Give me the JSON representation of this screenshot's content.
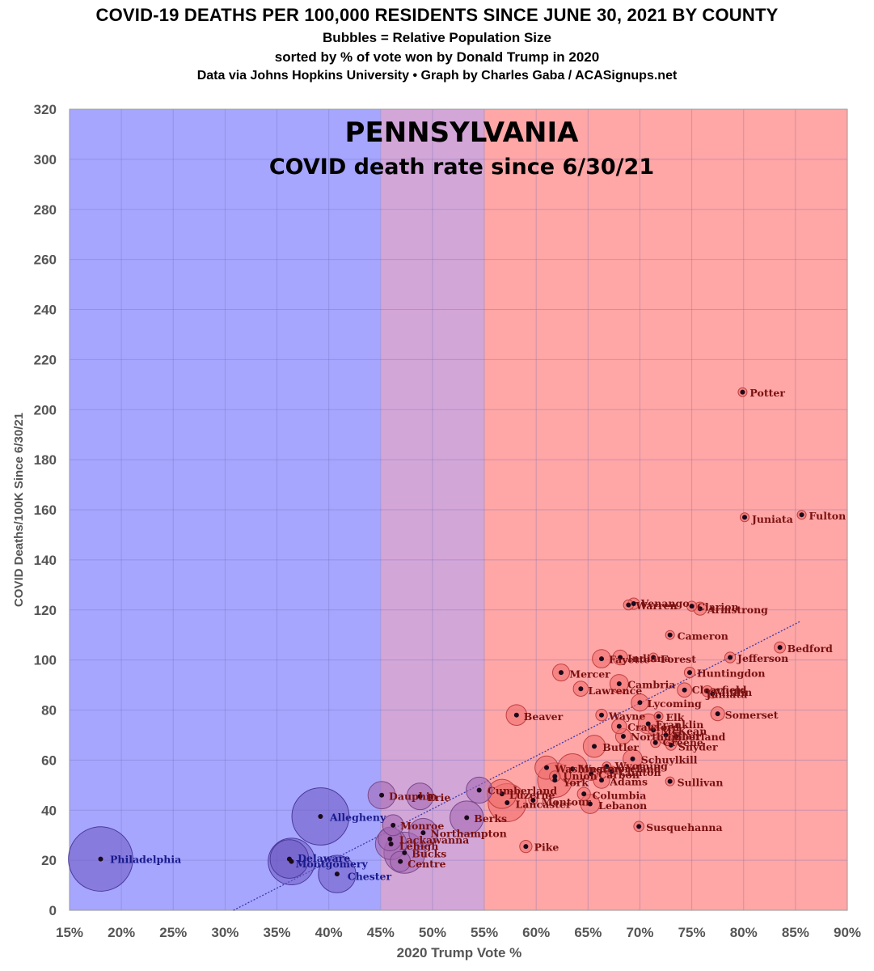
{
  "header": {
    "title": "COVID-19 DEATHS PER 100,000 RESIDENTS SINCE JUNE 30, 2021 BY COUNTY",
    "subtitle1": "Bubbles = Relative Population Size",
    "subtitle2": "sorted by % of vote won by Donald Trump in 2020",
    "subtitle3": "Data via Johns Hopkins University • Graph by Charles Gaba / ACASignups.net"
  },
  "chart_data": {
    "type": "scatter",
    "inset_title": "PENNSYLVANIA",
    "inset_subtitle": "COVID death rate since 6/30/21",
    "xlabel": "2020 Trump Vote %",
    "ylabel": "COVID Deaths/100K Since 6/30/21",
    "xlim": [
      15,
      90
    ],
    "ylim": [
      0,
      320
    ],
    "x_ticks": [
      "15%",
      "20%",
      "25%",
      "30%",
      "35%",
      "40%",
      "45%",
      "50%",
      "55%",
      "60%",
      "65%",
      "70%",
      "75%",
      "80%",
      "85%",
      "90%"
    ],
    "y_ticks": [
      "0",
      "20",
      "40",
      "60",
      "80",
      "100",
      "120",
      "140",
      "160",
      "180",
      "200",
      "220",
      "240",
      "260",
      "280",
      "300",
      "320"
    ],
    "grid": true,
    "bands": [
      {
        "from": 15,
        "to": 45,
        "color": "#a6a6ff"
      },
      {
        "from": 45,
        "to": 55,
        "color": "#d3a6d8"
      },
      {
        "from": 55,
        "to": 90,
        "color": "#ffa6a6"
      }
    ],
    "trendline": {
      "x": [
        30.8,
        85.5
      ],
      "y": [
        0,
        115.5
      ],
      "color": "#3a3aa8"
    },
    "colors": {
      "dem_label": "#1a1a8c",
      "rep_label": "#7a1010",
      "dem_bubble": "#7a6ac8",
      "swing_bubble": "#b07ab8",
      "rep_bubble": "#f07a7a",
      "dot": "#1a0a1a"
    },
    "points": [
      {
        "name": "Philadelphia",
        "x": 18.0,
        "y": 20.5,
        "pop": 1584
      },
      {
        "name": "Delaware",
        "x": 36.2,
        "y": 20.5,
        "pop": 566
      },
      {
        "name": "Montgomery",
        "x": 36.4,
        "y": 19.5,
        "pop": 830
      },
      {
        "name": "Allegheny",
        "x": 39.2,
        "y": 37.5,
        "pop": 1250
      },
      {
        "name": "Chester",
        "x": 40.8,
        "y": 14.5,
        "pop": 534
      },
      {
        "name": "Dauphin",
        "x": 45.1,
        "y": 46.0,
        "pop": 286
      },
      {
        "name": "Lackawanna",
        "x": 45.9,
        "y": 28.5,
        "pop": 215
      },
      {
        "name": "Lehigh",
        "x": 46.0,
        "y": 26.5,
        "pop": 374
      },
      {
        "name": "Monroe",
        "x": 46.2,
        "y": 34.0,
        "pop": 168
      },
      {
        "name": "Bucks",
        "x": 47.3,
        "y": 23.0,
        "pop": 646
      },
      {
        "name": "Centre",
        "x": 46.9,
        "y": 19.5,
        "pop": 158
      },
      {
        "name": "Erie",
        "x": 48.8,
        "y": 45.5,
        "pop": 270
      },
      {
        "name": "Northampton",
        "x": 49.1,
        "y": 31.0,
        "pop": 312
      },
      {
        "name": "Berks",
        "x": 53.3,
        "y": 37.0,
        "pop": 428
      },
      {
        "name": "Cumberland",
        "x": 54.5,
        "y": 48.0,
        "pop": 259
      },
      {
        "name": "Luzerne",
        "x": 56.7,
        "y": 46.5,
        "pop": 325
      },
      {
        "name": "Lancaster",
        "x": 57.2,
        "y": 43.0,
        "pop": 553
      },
      {
        "name": "Montour",
        "x": 59.7,
        "y": 44.0,
        "pop": 18
      },
      {
        "name": "Pike",
        "x": 59.0,
        "y": 25.5,
        "pop": 58
      },
      {
        "name": "Beaver",
        "x": 58.1,
        "y": 78.0,
        "pop": 163
      },
      {
        "name": "Washington",
        "x": 61.0,
        "y": 57.0,
        "pop": 207
      },
      {
        "name": "Union",
        "x": 61.8,
        "y": 53.5,
        "pop": 45
      },
      {
        "name": "York",
        "x": 61.8,
        "y": 52.0,
        "pop": 456
      },
      {
        "name": "Westmoreland",
        "x": 63.5,
        "y": 56.5,
        "pop": 348
      },
      {
        "name": "Carbon",
        "x": 65.3,
        "y": 54.5,
        "pop": 65
      },
      {
        "name": "Mercer",
        "x": 62.4,
        "y": 95.0,
        "pop": 110
      },
      {
        "name": "Lawrence",
        "x": 64.3,
        "y": 88.5,
        "pop": 86
      },
      {
        "name": "Fayette",
        "x": 66.3,
        "y": 100.5,
        "pop": 129
      },
      {
        "name": "Indiana",
        "x": 68.1,
        "y": 101.0,
        "pop": 84
      },
      {
        "name": "Forest",
        "x": 71.3,
        "y": 101.0,
        "pop": 7
      },
      {
        "name": "Cambria",
        "x": 68.0,
        "y": 90.5,
        "pop": 131
      },
      {
        "name": "Wayne",
        "x": 66.3,
        "y": 78.0,
        "pop": 51
      },
      {
        "name": "Butler",
        "x": 65.6,
        "y": 65.5,
        "pop": 187
      },
      {
        "name": "Columbia",
        "x": 64.6,
        "y": 46.5,
        "pop": 65
      },
      {
        "name": "Lebanon",
        "x": 65.2,
        "y": 42.5,
        "pop": 142
      },
      {
        "name": "Adams",
        "x": 66.3,
        "y": 52.0,
        "pop": 103
      },
      {
        "name": "Wyoming",
        "x": 66.8,
        "y": 57.5,
        "pop": 27
      },
      {
        "name": "Clinton",
        "x": 67.3,
        "y": 55.5,
        "pop": 39
      },
      {
        "name": "Schuylkill",
        "x": 69.3,
        "y": 60.5,
        "pop": 141
      },
      {
        "name": "Crawford",
        "x": 68.0,
        "y": 73.5,
        "pop": 84
      },
      {
        "name": "Northumberland",
        "x": 68.4,
        "y": 69.5,
        "pop": 91
      },
      {
        "name": "Lycoming",
        "x": 70.0,
        "y": 83.0,
        "pop": 113
      },
      {
        "name": "Elk",
        "x": 71.8,
        "y": 77.5,
        "pop": 30
      },
      {
        "name": "Franklin",
        "x": 70.8,
        "y": 74.5,
        "pop": 155
      },
      {
        "name": "McKean",
        "x": 71.3,
        "y": 72.0,
        "pop": 40
      },
      {
        "name": "Venango",
        "x": 69.4,
        "y": 122.5,
        "pop": 50
      },
      {
        "name": "Warren",
        "x": 68.9,
        "y": 122.0,
        "pop": 39
      },
      {
        "name": "Clarion",
        "x": 75.0,
        "y": 121.5,
        "pop": 38
      },
      {
        "name": "Armstrong",
        "x": 75.8,
        "y": 120.5,
        "pop": 65
      },
      {
        "name": "Cameron",
        "x": 72.9,
        "y": 110.0,
        "pop": 4
      },
      {
        "name": "Greene",
        "x": 71.5,
        "y": 67.0,
        "pop": 36
      },
      {
        "name": "Perry",
        "x": 73.5,
        "y": 69.5,
        "pop": 46
      },
      {
        "name": "Blair",
        "x": 72.5,
        "y": 70.0,
        "pop": 121
      },
      {
        "name": "Snyder",
        "x": 73.0,
        "y": 66.0,
        "pop": 41
      },
      {
        "name": "Sullivan",
        "x": 72.9,
        "y": 51.5,
        "pop": 6
      },
      {
        "name": "Susquehanna",
        "x": 69.9,
        "y": 33.5,
        "pop": 40
      },
      {
        "name": "Huntingdon",
        "x": 74.8,
        "y": 95.0,
        "pop": 44
      },
      {
        "name": "Clearfield",
        "x": 74.3,
        "y": 88.0,
        "pop": 79
      },
      {
        "name": "Mifflin",
        "x": 76.5,
        "y": 87.5,
        "pop": 46
      },
      {
        "name": "Juniata",
        "x": 77.0,
        "y": 86.5,
        "pop": 25
      },
      {
        "name": "Somerset",
        "x": 77.5,
        "y": 78.5,
        "pop": 74
      },
      {
        "name": "Jefferson",
        "x": 78.7,
        "y": 101.0,
        "pop": 44
      },
      {
        "name": "Bedford",
        "x": 83.5,
        "y": 105.0,
        "pop": 48
      },
      {
        "name": "Potter",
        "x": 79.9,
        "y": 207.0,
        "pop": 16
      },
      {
        "name": "Juniata",
        "x": 80.1,
        "y": 157.0,
        "pop": 23
      },
      {
        "name": "Fulton",
        "x": 85.6,
        "y": 158.0,
        "pop": 15
      }
    ],
    "labels": [
      {
        "text": "Philadelphia",
        "x": 18.9,
        "y": 20.5,
        "side": "dem"
      },
      {
        "text": "Delaware",
        "x": 37.0,
        "y": 21.0,
        "side": "dem"
      },
      {
        "text": "Montgomery",
        "x": 36.8,
        "y": 18.8,
        "side": "dem"
      },
      {
        "text": "Allegheny",
        "x": 40.1,
        "y": 37.3,
        "side": "dem"
      },
      {
        "text": "Chester",
        "x": 41.8,
        "y": 13.8,
        "side": "dem"
      },
      {
        "text": "Dauphin",
        "x": 45.8,
        "y": 45.8,
        "side": "swing"
      },
      {
        "text": "Erie",
        "x": 49.5,
        "y": 45.3,
        "side": "swing"
      },
      {
        "text": "Monroe",
        "x": 46.9,
        "y": 34.0,
        "side": "swing"
      },
      {
        "text": "Northampton",
        "x": 49.8,
        "y": 30.8,
        "side": "swing"
      },
      {
        "text": "Lackawanna",
        "x": 46.8,
        "y": 28.3,
        "side": "swing"
      },
      {
        "text": "Lehigh",
        "x": 46.8,
        "y": 25.8,
        "side": "swing"
      },
      {
        "text": "Bucks",
        "x": 48.0,
        "y": 22.8,
        "side": "swing"
      },
      {
        "text": "Centre",
        "x": 47.6,
        "y": 18.8,
        "side": "swing"
      },
      {
        "text": "Berks",
        "x": 54.0,
        "y": 36.8,
        "side": "swing"
      },
      {
        "text": "Cumberland",
        "x": 55.3,
        "y": 48.0,
        "side": "rep"
      },
      {
        "text": "Luzerne",
        "x": 57.4,
        "y": 46.3,
        "side": "rep"
      },
      {
        "text": "Lancaster",
        "x": 58.0,
        "y": 42.5,
        "side": "rep"
      },
      {
        "text": "Montour",
        "x": 60.5,
        "y": 43.5,
        "side": "rep"
      },
      {
        "text": "Pike",
        "x": 59.8,
        "y": 25.3,
        "side": "rep"
      },
      {
        "text": "Beaver",
        "x": 58.8,
        "y": 77.5,
        "side": "rep"
      },
      {
        "text": "Washington",
        "x": 61.8,
        "y": 56.8,
        "side": "rep"
      },
      {
        "text": "Union",
        "x": 62.6,
        "y": 53.8,
        "side": "rep"
      },
      {
        "text": "York",
        "x": 62.6,
        "y": 51.3,
        "side": "rep"
      },
      {
        "text": "Westmoreland",
        "x": 64.2,
        "y": 56.8,
        "side": "rep"
      },
      {
        "text": "Carbon",
        "x": 66.0,
        "y": 54.3,
        "side": "rep"
      },
      {
        "text": "Wyoming",
        "x": 67.6,
        "y": 57.8,
        "side": "rep"
      },
      {
        "text": "Clinton",
        "x": 68.0,
        "y": 55.3,
        "side": "rep"
      },
      {
        "text": "Adams",
        "x": 67.1,
        "y": 51.5,
        "side": "rep"
      },
      {
        "text": "Columbia",
        "x": 65.4,
        "y": 46.0,
        "side": "rep"
      },
      {
        "text": "Lebanon",
        "x": 66.0,
        "y": 42.0,
        "side": "rep"
      },
      {
        "text": "Mercer",
        "x": 63.2,
        "y": 94.5,
        "side": "rep"
      },
      {
        "text": "Lawrence",
        "x": 65.0,
        "y": 88.0,
        "side": "rep"
      },
      {
        "text": "Fayette",
        "x": 67.0,
        "y": 100.3,
        "side": "rep"
      },
      {
        "text": "Indiana",
        "x": 68.8,
        "y": 100.8,
        "side": "rep"
      },
      {
        "text": "Forest",
        "x": 72.0,
        "y": 100.5,
        "side": "rep"
      },
      {
        "text": "Cambria",
        "x": 68.8,
        "y": 90.3,
        "side": "rep"
      },
      {
        "text": "Wayne",
        "x": 67.0,
        "y": 77.8,
        "side": "rep"
      },
      {
        "text": "Lycoming",
        "x": 70.7,
        "y": 82.8,
        "side": "rep"
      },
      {
        "text": "Elk",
        "x": 72.5,
        "y": 77.3,
        "side": "rep"
      },
      {
        "text": "Crawford",
        "x": 68.8,
        "y": 73.3,
        "side": "rep"
      },
      {
        "text": "Franklin",
        "x": 71.5,
        "y": 74.3,
        "side": "rep"
      },
      {
        "text": "McKean",
        "x": 72.0,
        "y": 71.8,
        "side": "rep"
      },
      {
        "text": "Northumberland",
        "x": 69.1,
        "y": 69.5,
        "side": "rep"
      },
      {
        "text": "Blair",
        "x": 73.2,
        "y": 69.8,
        "side": "rep"
      },
      {
        "text": "Greene",
        "x": 72.2,
        "y": 67.2,
        "side": "rep"
      },
      {
        "text": "Snyder",
        "x": 73.7,
        "y": 65.5,
        "side": "rep"
      },
      {
        "text": "Butler",
        "x": 66.4,
        "y": 65.3,
        "side": "rep"
      },
      {
        "text": "Schuylkill",
        "x": 70.1,
        "y": 60.3,
        "side": "rep"
      },
      {
        "text": "Sullivan",
        "x": 73.6,
        "y": 51.3,
        "side": "rep"
      },
      {
        "text": "Susquehanna",
        "x": 70.6,
        "y": 33.3,
        "side": "rep"
      },
      {
        "text": "Venango",
        "x": 70.1,
        "y": 122.8,
        "side": "rep"
      },
      {
        "text": "Warren",
        "x": 69.6,
        "y": 121.8,
        "side": "rep"
      },
      {
        "text": "Clarion",
        "x": 75.5,
        "y": 121.3,
        "side": "rep"
      },
      {
        "text": "Armstrong",
        "x": 76.5,
        "y": 120.3,
        "side": "rep"
      },
      {
        "text": "Cameron",
        "x": 73.6,
        "y": 109.8,
        "side": "rep"
      },
      {
        "text": "Huntingdon",
        "x": 75.5,
        "y": 94.8,
        "side": "rep"
      },
      {
        "text": "Clearfield",
        "x": 75.0,
        "y": 88.3,
        "side": "rep"
      },
      {
        "text": "Mifflin",
        "x": 77.2,
        "y": 87.3,
        "side": "rep"
      },
      {
        "text": "Juniata",
        "x": 76.4,
        "y": 86.5,
        "side": "rep"
      },
      {
        "text": "Somerset",
        "x": 78.2,
        "y": 78.3,
        "side": "rep"
      },
      {
        "text": "Jefferson",
        "x": 79.4,
        "y": 100.8,
        "side": "rep"
      },
      {
        "text": "Bedford",
        "x": 84.2,
        "y": 104.8,
        "side": "rep"
      },
      {
        "text": "Potter",
        "x": 80.6,
        "y": 206.8,
        "side": "rep"
      },
      {
        "text": "Juniata",
        "x": 80.8,
        "y": 156.5,
        "side": "rep"
      },
      {
        "text": "Fulton",
        "x": 86.3,
        "y": 157.8,
        "side": "rep"
      }
    ]
  }
}
